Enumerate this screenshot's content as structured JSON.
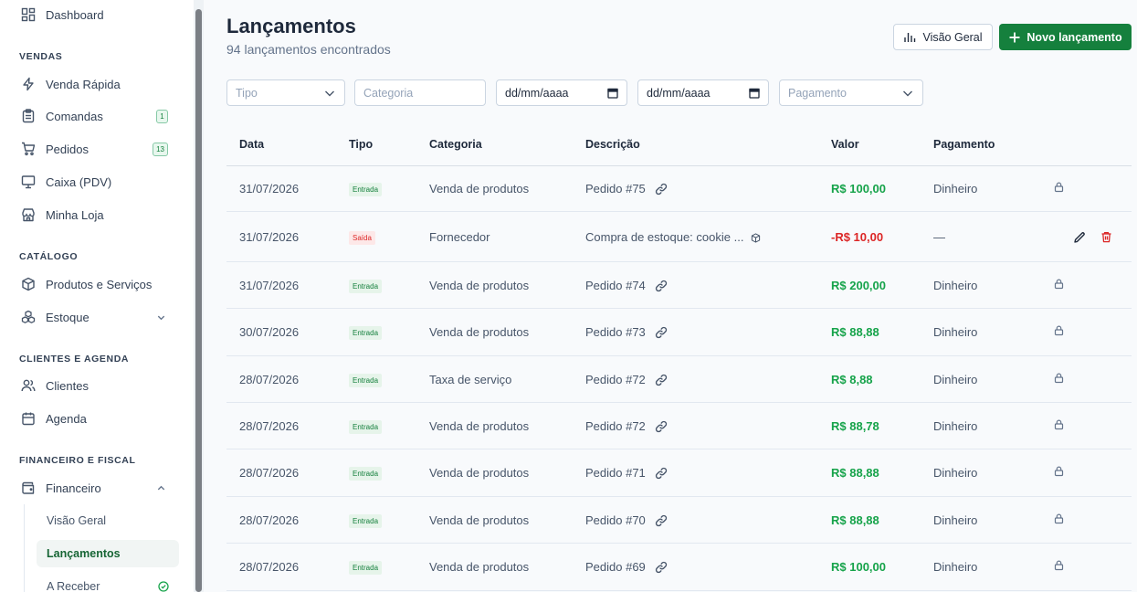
{
  "sidebar": {
    "dashboard": "Dashboard",
    "sections": {
      "vendas": "VENDAS",
      "catalogo": "CATÁLOGO",
      "clientes": "CLIENTES E AGENDA",
      "financeiro": "FINANCEIRO E FISCAL"
    },
    "items": {
      "venda_rapida": "Venda Rápida",
      "comandas": "Comandas",
      "comandas_badge": "1",
      "pedidos": "Pedidos",
      "pedidos_badge": "13",
      "caixa": "Caixa (PDV)",
      "minha_loja": "Minha Loja",
      "produtos": "Produtos e Serviços",
      "estoque": "Estoque",
      "clientes": "Clientes",
      "agenda": "Agenda",
      "financeiro": "Financeiro"
    },
    "sub": {
      "visao_geral": "Visão Geral",
      "lancamentos": "Lançamentos",
      "a_receber": "A Receber"
    }
  },
  "header": {
    "title": "Lançamentos",
    "subtitle": "94 lançamentos encontrados",
    "overview_button": "Visão Geral",
    "new_button": "Novo lançamento"
  },
  "filters": {
    "tipo_placeholder": "Tipo",
    "categoria_placeholder": "Categoria",
    "date_from": "dd/mm/aaaa",
    "date_to": "dd/mm/aaaa",
    "pagamento_placeholder": "Pagamento"
  },
  "table": {
    "headers": {
      "data": "Data",
      "tipo": "Tipo",
      "categoria": "Categoria",
      "descricao": "Descrição",
      "valor": "Valor",
      "pagamento": "Pagamento"
    },
    "rows": [
      {
        "data": "31/07/2026",
        "tipo": "Entrada",
        "categoria": "Venda de produtos",
        "descricao": "Pedido #75",
        "valor": "R$ 100,00",
        "pagamento": "Dinheiro"
      },
      {
        "data": "31/07/2026",
        "tipo": "Saída",
        "categoria": "Fornecedor",
        "descricao": "Compra de estoque: cookie ...",
        "valor": "-R$ 10,00",
        "pagamento": "—"
      },
      {
        "data": "31/07/2026",
        "tipo": "Entrada",
        "categoria": "Venda de produtos",
        "descricao": "Pedido #74",
        "valor": "R$ 200,00",
        "pagamento": "Dinheiro"
      },
      {
        "data": "30/07/2026",
        "tipo": "Entrada",
        "categoria": "Venda de produtos",
        "descricao": "Pedido #73",
        "valor": "R$ 88,88",
        "pagamento": "Dinheiro"
      },
      {
        "data": "28/07/2026",
        "tipo": "Entrada",
        "categoria": "Taxa de serviço",
        "descricao": "Pedido #72",
        "valor": "R$ 8,88",
        "pagamento": "Dinheiro"
      },
      {
        "data": "28/07/2026",
        "tipo": "Entrada",
        "categoria": "Venda de produtos",
        "descricao": "Pedido #72",
        "valor": "R$ 88,78",
        "pagamento": "Dinheiro"
      },
      {
        "data": "28/07/2026",
        "tipo": "Entrada",
        "categoria": "Venda de produtos",
        "descricao": "Pedido #71",
        "valor": "R$ 88,88",
        "pagamento": "Dinheiro"
      },
      {
        "data": "28/07/2026",
        "tipo": "Entrada",
        "categoria": "Venda de produtos",
        "descricao": "Pedido #70",
        "valor": "R$ 88,88",
        "pagamento": "Dinheiro"
      },
      {
        "data": "28/07/2026",
        "tipo": "Entrada",
        "categoria": "Venda de produtos",
        "descricao": "Pedido #69",
        "valor": "R$ 100,00",
        "pagamento": "Dinheiro"
      }
    ]
  },
  "colors": {
    "primary": "#15803d",
    "positive": "#16a34a",
    "negative": "#dc2626"
  }
}
